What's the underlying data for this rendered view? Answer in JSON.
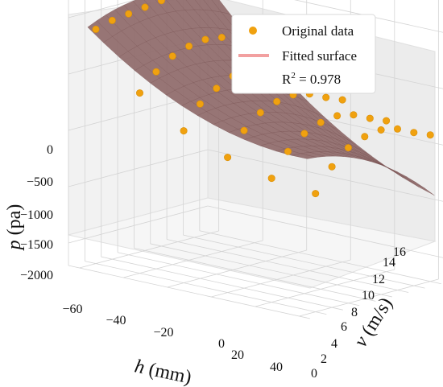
{
  "chart_data": {
    "type": "scatter",
    "variant": "3d-surface-with-points",
    "axes": {
      "x": {
        "label_symbol": "h",
        "label_unit": " (mm)",
        "ticks": [
          "−60",
          "−40",
          "−20",
          "0",
          "20",
          "40"
        ],
        "range": [
          -65,
          45
        ]
      },
      "y": {
        "label_symbol": "v",
        "label_unit": " (m/s)",
        "ticks": [
          "0",
          "2",
          "4",
          "6",
          "8",
          "10",
          "12",
          "14",
          "16"
        ],
        "range": [
          0,
          17
        ]
      },
      "z": {
        "label_symbol": "p",
        "label_unit": " (pa)",
        "ticks": [
          "0",
          "−500",
          "−1000",
          "−1500",
          "−2000"
        ],
        "range": [
          -2200,
          300
        ]
      }
    },
    "legend": {
      "placement": "top-right",
      "items": [
        {
          "label": "Original data",
          "color": "#f0a10f",
          "kind": "marker"
        },
        {
          "label": "Fitted surface",
          "color": "#f2a0a0",
          "kind": "line"
        }
      ],
      "r2_prefix": "R",
      "r2_sup": "2",
      "r2_value": " = 0.978"
    },
    "colors": {
      "surface": "#8f6a6a",
      "surface_edge": "#7a5454",
      "points": "#f0a10f",
      "grid": "#d4d4d4"
    },
    "grid": true,
    "series": [
      {
        "name": "Original data",
        "points": [
          {
            "h": -60,
            "v": 2,
            "p": -120
          },
          {
            "h": -60,
            "v": 4,
            "p": -80
          },
          {
            "h": -60,
            "v": 6,
            "p": -60
          },
          {
            "h": -60,
            "v": 8,
            "p": -40
          },
          {
            "h": -60,
            "v": 10,
            "p": -20
          },
          {
            "h": -60,
            "v": 12,
            "p": 0
          },
          {
            "h": -60,
            "v": 14,
            "p": -20
          },
          {
            "h": -60,
            "v": 16,
            "p": -30
          },
          {
            "h": -40,
            "v": 2,
            "p": -600
          },
          {
            "h": -40,
            "v": 4,
            "p": -450
          },
          {
            "h": -40,
            "v": 6,
            "p": -350
          },
          {
            "h": -40,
            "v": 8,
            "p": -300
          },
          {
            "h": -40,
            "v": 10,
            "p": -280
          },
          {
            "h": -40,
            "v": 12,
            "p": -300
          },
          {
            "h": -40,
            "v": 14,
            "p": -350
          },
          {
            "h": -40,
            "v": 16,
            "p": -380
          },
          {
            "h": -20,
            "v": 2,
            "p": -850
          },
          {
            "h": -20,
            "v": 4,
            "p": -650
          },
          {
            "h": -20,
            "v": 6,
            "p": -550
          },
          {
            "h": -20,
            "v": 8,
            "p": -480
          },
          {
            "h": -20,
            "v": 10,
            "p": -460
          },
          {
            "h": -20,
            "v": 12,
            "p": -480
          },
          {
            "h": -20,
            "v": 14,
            "p": -550
          },
          {
            "h": -20,
            "v": 16,
            "p": -600
          },
          {
            "h": 0,
            "v": 2,
            "p": -1000
          },
          {
            "h": 0,
            "v": 4,
            "p": -800
          },
          {
            "h": 0,
            "v": 6,
            "p": -680
          },
          {
            "h": 0,
            "v": 8,
            "p": -620
          },
          {
            "h": 0,
            "v": 10,
            "p": -600
          },
          {
            "h": 0,
            "v": 12,
            "p": -630
          },
          {
            "h": 0,
            "v": 14,
            "p": -700
          },
          {
            "h": 0,
            "v": 16,
            "p": -760
          },
          {
            "h": 20,
            "v": 2,
            "p": -1100
          },
          {
            "h": 20,
            "v": 4,
            "p": -900
          },
          {
            "h": 20,
            "v": 6,
            "p": -780
          },
          {
            "h": 20,
            "v": 8,
            "p": -720
          },
          {
            "h": 20,
            "v": 10,
            "p": -700
          },
          {
            "h": 20,
            "v": 12,
            "p": -730
          },
          {
            "h": 20,
            "v": 14,
            "p": -800
          },
          {
            "h": 20,
            "v": 16,
            "p": -860
          },
          {
            "h": 40,
            "v": 2,
            "p": -1150
          },
          {
            "h": 40,
            "v": 4,
            "p": -950
          },
          {
            "h": 40,
            "v": 6,
            "p": -820
          },
          {
            "h": 40,
            "v": 8,
            "p": -760
          },
          {
            "h": 40,
            "v": 10,
            "p": -740
          },
          {
            "h": 40,
            "v": 12,
            "p": -770
          },
          {
            "h": 40,
            "v": 14,
            "p": -840
          },
          {
            "h": 40,
            "v": 16,
            "p": -900
          }
        ]
      }
    ]
  }
}
